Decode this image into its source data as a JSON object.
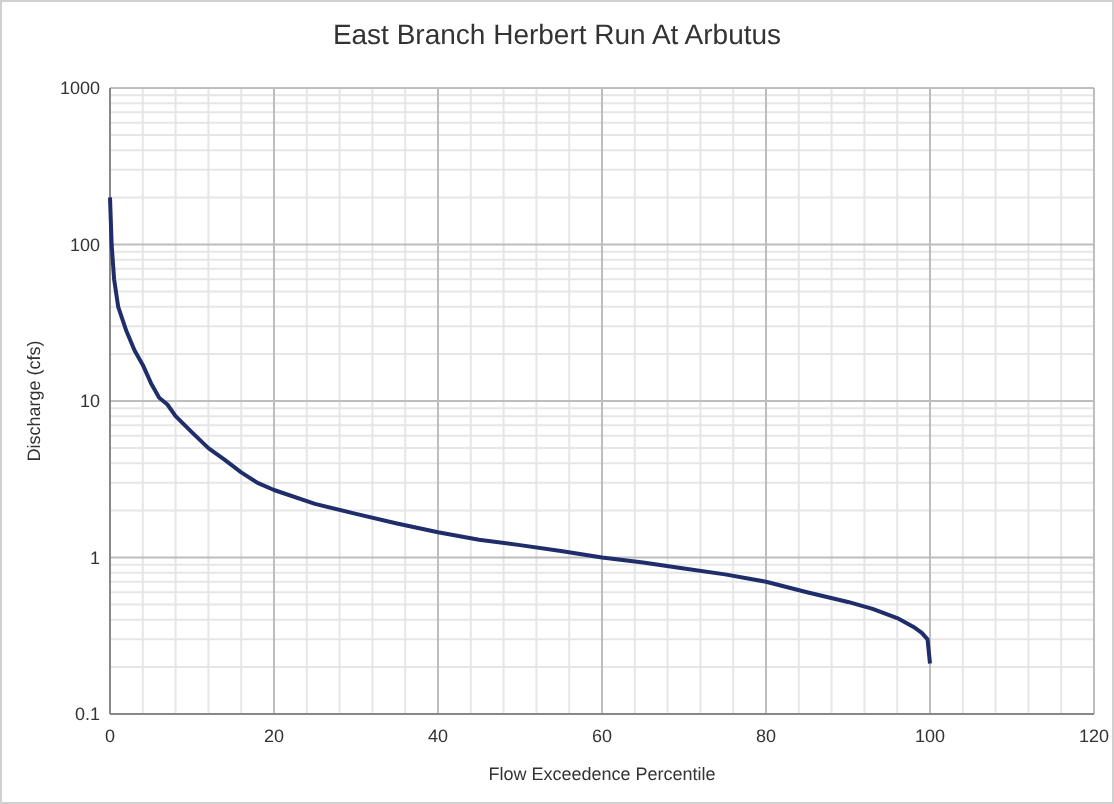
{
  "chart_data": {
    "type": "line",
    "title": "East Branch Herbert Run At Arbutus",
    "xlabel": "Flow Exceedence Percentile",
    "ylabel": "Discharge (cfs)",
    "log": "y",
    "grid": true,
    "marker": "none",
    "line_style": "solid",
    "xlim": [
      0,
      120
    ],
    "xticks": [
      0,
      20,
      40,
      60,
      80,
      100,
      120
    ],
    "ylim": [
      0.1,
      1000
    ],
    "yticks": [
      0.1,
      1,
      10,
      100,
      1000
    ],
    "series": [
      {
        "color": "#1f2d6b",
        "x": [
          0,
          0.2,
          0.5,
          1,
          2,
          3,
          4,
          5,
          6,
          7,
          8,
          10,
          12,
          14,
          16,
          18,
          20,
          25,
          30,
          35,
          40,
          45,
          50,
          55,
          60,
          65,
          70,
          75,
          80,
          85,
          90,
          93,
          96,
          98,
          99,
          99.7,
          100
        ],
        "values": [
          200,
          100,
          60,
          40,
          28,
          21,
          17,
          13,
          10.5,
          9.5,
          8,
          6.3,
          5,
          4.2,
          3.5,
          3,
          2.7,
          2.2,
          1.9,
          1.65,
          1.45,
          1.3,
          1.2,
          1.1,
          1.0,
          0.93,
          0.85,
          0.78,
          0.7,
          0.6,
          0.52,
          0.47,
          0.41,
          0.36,
          0.33,
          0.3,
          0.21
        ]
      }
    ]
  }
}
